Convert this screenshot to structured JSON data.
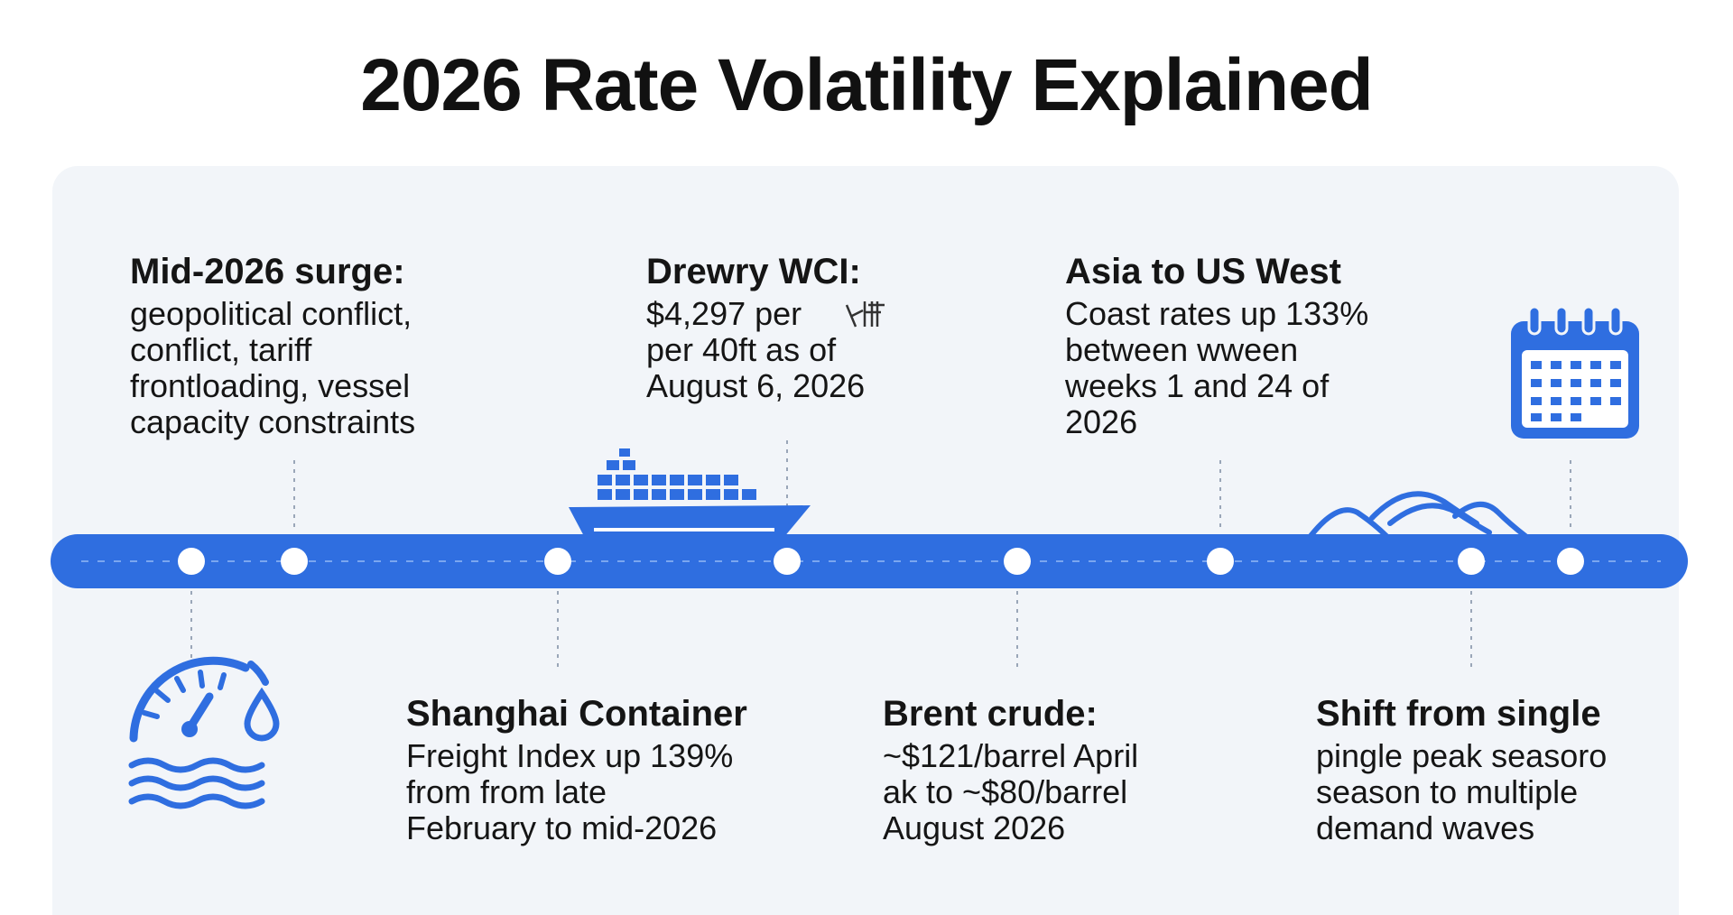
{
  "title": "2026 Rate Volatility Explained",
  "colors": {
    "accent": "#2f6ee0",
    "panel": "#f2f5f9",
    "text": "#151515"
  },
  "cards": [
    {
      "heading": "Mid-2026 surge:",
      "lines": [
        "geopolitical conflict,",
        "conflict, tariff",
        "frontloading, vessel",
        "capacity constraints"
      ]
    },
    {
      "heading": "Drewry WCI:",
      "lines": [
        "$4,297 per",
        "per 40ft as of",
        "August 6, 2026"
      ]
    },
    {
      "heading": "Asia to US West",
      "lines": [
        "Coast rates up 133%",
        "between wween",
        "weeks 1 and 24 of",
        "2026"
      ]
    },
    {
      "heading": "Shanghai Container",
      "lines": [
        "Freight Index up 139%",
        "from from late",
        "February to mid-2026"
      ]
    },
    {
      "heading": "Brent crude:",
      "lines": [
        "~$121/barrel April",
        "ak to ~$80/barrel",
        "August 2026"
      ]
    },
    {
      "heading": "Shift from single",
      "lines": [
        "pingle peak seasoro",
        "season to multiple",
        "demand waves"
      ]
    }
  ],
  "icons": [
    "cargo-ship-icon",
    "calendar-icon",
    "mountain-waves-icon",
    "gauge-water-icon"
  ]
}
